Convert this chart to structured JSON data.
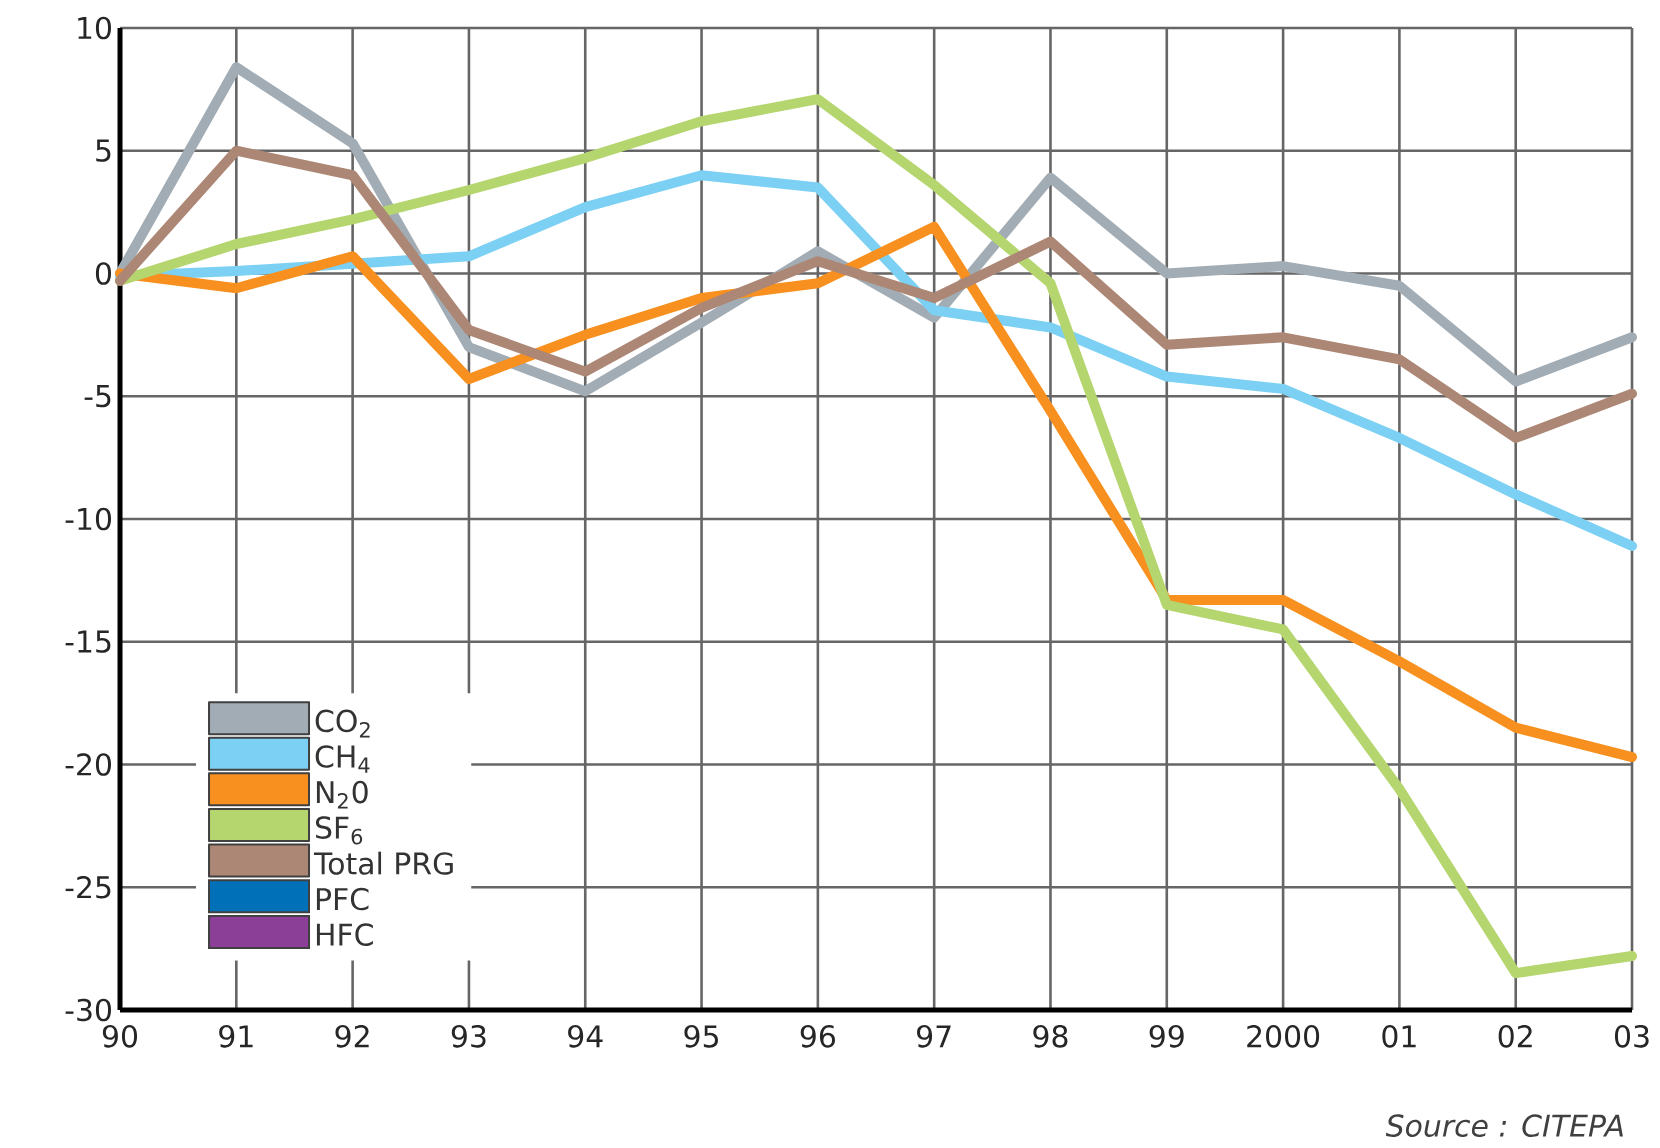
{
  "chart_data": {
    "type": "line",
    "categories": [
      "90",
      "91",
      "92",
      "93",
      "94",
      "95",
      "96",
      "97",
      "98",
      "99",
      "2000",
      "01",
      "02",
      "03"
    ],
    "series": [
      {
        "name": "CO$_{2}$",
        "color": "#a2acb4",
        "values": [
          0,
          8.4,
          5.3,
          -3.0,
          -4.8,
          -2.0,
          0.9,
          -1.8,
          3.9,
          0.0,
          0.3,
          -0.5,
          -4.4,
          -2.6
        ]
      },
      {
        "name": "CH$_{4}$",
        "color": "#7bd0f3",
        "values": [
          -0.1,
          0.1,
          0.4,
          0.7,
          2.7,
          4.0,
          3.5,
          -1.5,
          -2.2,
          -4.2,
          -4.7,
          -6.7,
          -9.0,
          -11.1
        ]
      },
      {
        "name": "N$_{2}$0",
        "color": "#f7901e",
        "values": [
          0,
          -0.6,
          0.7,
          -4.3,
          -2.5,
          -1.0,
          -0.4,
          1.9,
          -5.6,
          -13.3,
          -13.3,
          -15.8,
          -18.5,
          -19.7
        ]
      },
      {
        "name": "SF$_{6}$",
        "color": "#b5d56f",
        "values": [
          -0.3,
          1.2,
          2.2,
          3.4,
          4.7,
          6.2,
          7.1,
          3.6,
          -0.4,
          -13.5,
          -14.5,
          -21.0,
          -28.5,
          -27.8
        ]
      },
      {
        "name": "Total PRG",
        "color": "#ad8775",
        "values": [
          -0.3,
          5.0,
          4.0,
          -2.3,
          -4.0,
          -1.4,
          0.5,
          -1.0,
          1.3,
          -2.9,
          -2.6,
          -3.5,
          -6.7,
          -4.9
        ]
      },
      {
        "name": "PFC",
        "color": "#0070b8",
        "values": [
          null,
          null,
          null,
          null,
          null,
          null,
          null,
          null,
          null,
          null,
          null,
          null,
          null,
          null
        ]
      },
      {
        "name": "HFC",
        "color": "#8b3f96",
        "values": [
          null,
          null,
          null,
          null,
          null,
          null,
          null,
          null,
          null,
          null,
          null,
          null,
          null,
          null
        ]
      }
    ],
    "ylim": [
      -30,
      10
    ],
    "yticks": [
      -30,
      -25,
      -20,
      -15,
      -10,
      -5,
      0,
      5,
      10
    ],
    "grid": true,
    "legend": "bottom left",
    "annotations": [
      "Source : CITEPA"
    ]
  }
}
